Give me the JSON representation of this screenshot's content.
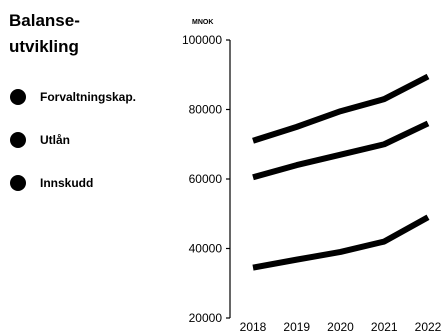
{
  "chart_data": {
    "type": "line",
    "title_lines": [
      "Balanse-",
      "utvikling"
    ],
    "unit_label": "MNOK",
    "x": [
      "2018",
      "2019",
      "2020",
      "2021",
      "2022"
    ],
    "ylim": [
      20000,
      100000
    ],
    "y_ticks": [
      100000,
      80000,
      60000,
      40000,
      20000
    ],
    "grid": false,
    "legend_position": "left",
    "series": [
      {
        "name": "Forvaltningskap.",
        "values": [
          71000,
          75000,
          79500,
          83000,
          89500
        ]
      },
      {
        "name": "Utlån",
        "values": [
          60500,
          64000,
          67000,
          70000,
          76000
        ]
      },
      {
        "name": "Innskudd",
        "values": [
          34500,
          36800,
          39000,
          42000,
          49000
        ]
      }
    ],
    "line_color": "#000000"
  }
}
